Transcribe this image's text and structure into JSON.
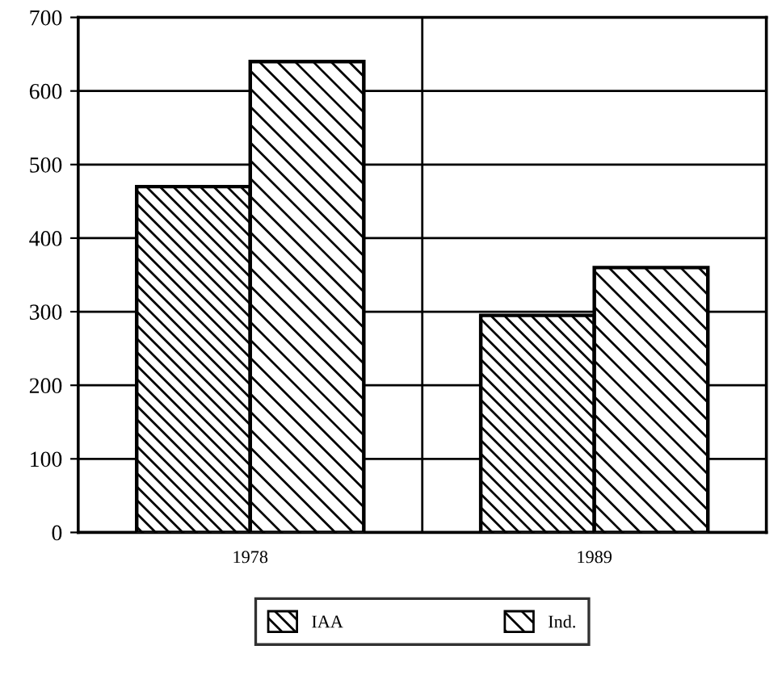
{
  "chart_data": {
    "type": "bar",
    "categories": [
      "1978",
      "1989"
    ],
    "series": [
      {
        "name": "IAA",
        "color": "#000000",
        "values": [
          470,
          295
        ]
      },
      {
        "name": "Ind.",
        "color": "#000000",
        "values": [
          640,
          360
        ]
      }
    ],
    "ylim": [
      0,
      700
    ],
    "yticks": [
      0,
      100,
      200,
      300,
      400,
      500,
      600,
      700
    ],
    "grid": true,
    "legend": "bottom"
  }
}
